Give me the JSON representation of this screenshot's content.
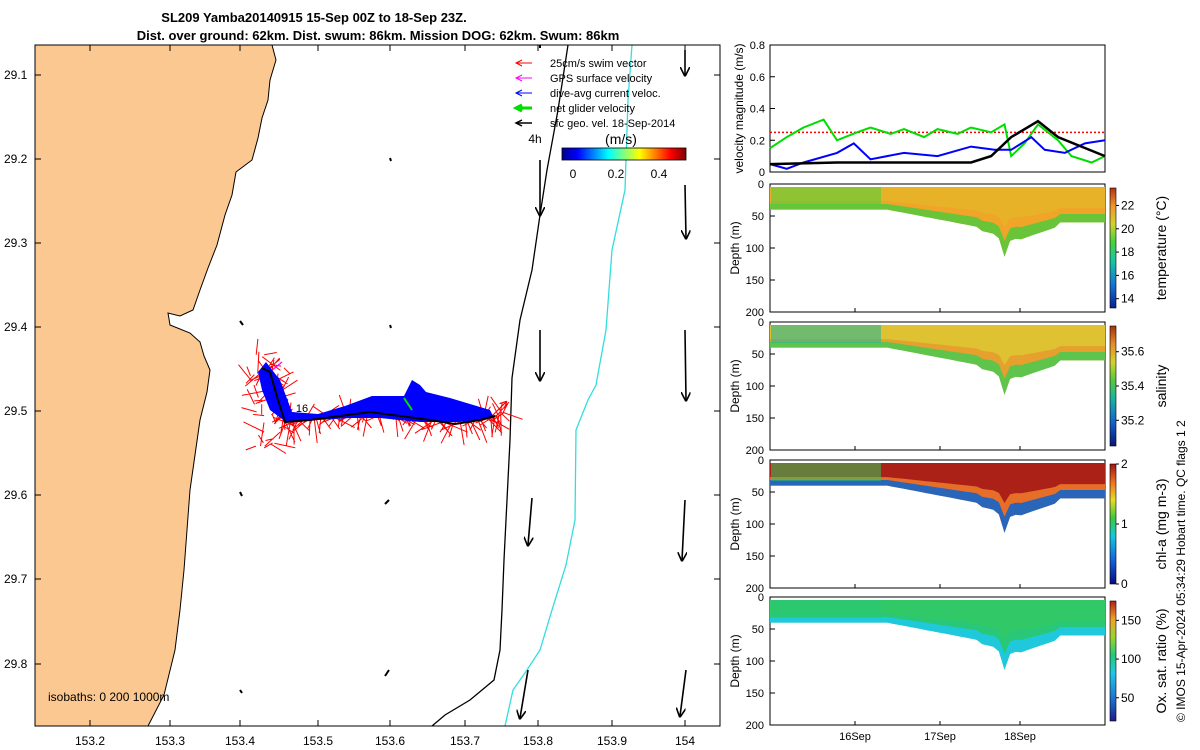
{
  "header": {
    "title_line1": "SL209 Yamba20140915 15-Sep 00Z to 18-Sep 23Z.",
    "title_line2": "Dist. over ground: 62km. Dist. swum: 86km. Mission DOG: 62km. Swum: 86km"
  },
  "colors": {
    "land": "#fbc892",
    "swim": "#ff0000",
    "gps": "#ff00ff",
    "dive_avg": "#0000ff",
    "net": "#00dd00",
    "sfc": "#000000",
    "isobath_200": "#000000",
    "isobath_1000": "#33dddd",
    "threshold": "#ff0000"
  },
  "map": {
    "xticks": [
      "153.2",
      "153.3",
      "153.4",
      "153.5",
      "153.6",
      "153.7",
      "153.8",
      "153.9",
      "154"
    ],
    "yticks": [
      "29.1",
      "29.2",
      "29.3",
      "29.4",
      "29.5",
      "29.6",
      "29.7",
      "29.8"
    ],
    "legend": [
      {
        "label": "25cm/s swim vector",
        "color": "#ff0000"
      },
      {
        "label": "GPS surface velocity",
        "color": "#ff00ff"
      },
      {
        "label": "dive-avg current veloc.",
        "color": "#0000ff"
      },
      {
        "label": "net glider velocity",
        "color": "#00dd00"
      },
      {
        "label": "sfc geo. vel. 18-Sep-2014",
        "color": "#000000"
      }
    ],
    "colorbar": {
      "title": "(m/s)",
      "ticks": [
        "0",
        "0.2",
        "0.4"
      ]
    },
    "label_4h": "4h",
    "label_16": "16",
    "isobaths": "isobaths: 0   200  1000m"
  },
  "credit": "© IMOS 15-Apr-2024 05:34:29 Hobart time. QC flags 1  2",
  "chart_data": [
    {
      "type": "line",
      "title": "",
      "xlabel": "",
      "ylabel": "velocity magnitude (m/s)",
      "ylim": [
        0,
        0.8
      ],
      "yticks": [
        "0",
        "0.2",
        "0.4",
        "0.6",
        "0.8"
      ],
      "series": [
        {
          "color": "#00dd00",
          "x": [
            0,
            0.05,
            0.1,
            0.16,
            0.2,
            0.26,
            0.3,
            0.36,
            0.4,
            0.46,
            0.5,
            0.56,
            0.6,
            0.66,
            0.7,
            0.72,
            0.76,
            0.8,
            0.86,
            0.9,
            0.96,
            1.0
          ],
          "y": [
            0.15,
            0.22,
            0.28,
            0.33,
            0.2,
            0.25,
            0.28,
            0.24,
            0.27,
            0.22,
            0.27,
            0.24,
            0.28,
            0.25,
            0.3,
            0.1,
            0.18,
            0.3,
            0.2,
            0.1,
            0.06,
            0.1
          ]
        },
        {
          "color": "#0000ff",
          "x": [
            0,
            0.05,
            0.1,
            0.2,
            0.25,
            0.3,
            0.4,
            0.5,
            0.6,
            0.67,
            0.72,
            0.78,
            0.82,
            0.88,
            0.94,
            1.0
          ],
          "y": [
            0.05,
            0.02,
            0.06,
            0.12,
            0.18,
            0.08,
            0.12,
            0.1,
            0.16,
            0.14,
            0.14,
            0.22,
            0.14,
            0.12,
            0.18,
            0.2
          ]
        },
        {
          "color": "#000000",
          "x": [
            0,
            0.2,
            0.4,
            0.6,
            0.66,
            0.72,
            0.8,
            0.86,
            1.0
          ],
          "y": [
            0.05,
            0.06,
            0.06,
            0.06,
            0.1,
            0.22,
            0.32,
            0.22,
            0.1
          ]
        }
      ],
      "threshold": 0.25
    },
    {
      "type": "heatmap",
      "ylabel": "Depth (m)",
      "clabel": "temperature (°C)",
      "yticks": [
        "0",
        "50",
        "100",
        "150",
        "200"
      ],
      "cticks": [
        "14",
        "16",
        "18",
        "20",
        "22"
      ],
      "crange": [
        13.2,
        23.5
      ]
    },
    {
      "type": "heatmap",
      "ylabel": "Depth (m)",
      "clabel": "salinity",
      "yticks": [
        "0",
        "50",
        "100",
        "150",
        "200"
      ],
      "cticks": [
        "35.2",
        "35.4",
        "35.6"
      ],
      "crange": [
        35.05,
        35.75
      ]
    },
    {
      "type": "heatmap",
      "ylabel": "Depth (m)",
      "clabel": "chl-a (mg m-3)",
      "yticks": [
        "0",
        "50",
        "100",
        "150",
        "200"
      ],
      "cticks": [
        "0",
        "1",
        "2"
      ],
      "crange": [
        0,
        2
      ]
    },
    {
      "type": "heatmap",
      "ylabel": "Depth (m)",
      "clabel": "Ox. sat. ratio (%)",
      "yticks": [
        "0",
        "50",
        "100",
        "150",
        "200"
      ],
      "cticks": [
        "50",
        "100",
        "150"
      ],
      "crange": [
        20,
        175
      ],
      "xticks": [
        "16Sep",
        "17Sep",
        "18Sep"
      ]
    }
  ]
}
